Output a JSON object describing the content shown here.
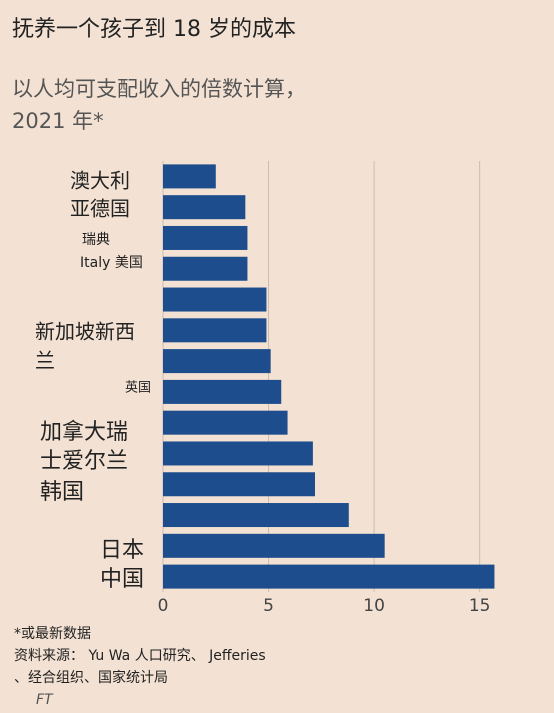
{
  "chart_data": {
    "type": "barh",
    "title": "抚养一个孩子到 18 岁的成本",
    "subtitle": [
      "以人均可支配收入的倍数计算，",
      "2021 年*"
    ],
    "categories": [
      "澳大利",
      "亚德国",
      "瑞典",
      "Italy 美国",
      null,
      "新加坡新西",
      "兰",
      "英国",
      "加拿大瑞",
      "士爱尔兰",
      "韩国",
      null,
      "日本",
      "中国"
    ],
    "values": [
      2.5,
      3.9,
      4.0,
      4.0,
      4.9,
      4.9,
      5.1,
      5.6,
      5.9,
      7.1,
      7.2,
      8.8,
      10.5,
      15.7
    ],
    "color": "#1d4d8c",
    "xlim": [
      0,
      16.2
    ],
    "xticks": [
      0,
      5,
      10,
      15
    ],
    "grid": true,
    "notes": [
      "*或最新数据",
      "资料来源： Yu Wa 人口研究、 Jefferies",
      "、经合组织、国家统计局"
    ],
    "source": "FT"
  }
}
